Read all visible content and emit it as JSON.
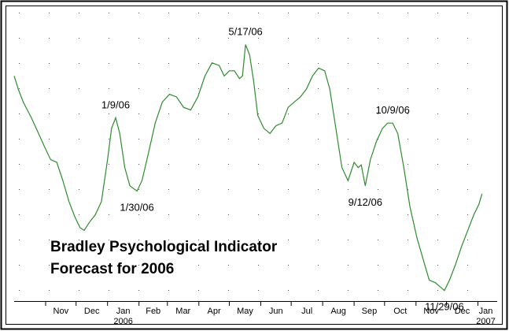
{
  "chart_data": {
    "type": "line",
    "title": "Bradley Psychological Indicator",
    "subtitle": "Forecast for 2006",
    "x_ticks": [
      {
        "label": "Nov",
        "sub": "",
        "date": "2005-11-01"
      },
      {
        "label": "Dec",
        "sub": "",
        "date": "2005-12-01"
      },
      {
        "label": "Jan",
        "sub": "2006",
        "date": "2006-01-01"
      },
      {
        "label": "Feb",
        "sub": "",
        "date": "2006-02-01"
      },
      {
        "label": "Mar",
        "sub": "",
        "date": "2006-03-01"
      },
      {
        "label": "Apr",
        "sub": "",
        "date": "2006-04-01"
      },
      {
        "label": "May",
        "sub": "",
        "date": "2006-05-01"
      },
      {
        "label": "Jun",
        "sub": "",
        "date": "2006-06-01"
      },
      {
        "label": "Jul",
        "sub": "",
        "date": "2006-07-01"
      },
      {
        "label": "Aug",
        "sub": "",
        "date": "2006-08-01"
      },
      {
        "label": "Sep",
        "sub": "",
        "date": "2006-09-01"
      },
      {
        "label": "Oct",
        "sub": "",
        "date": "2006-10-01"
      },
      {
        "label": "Nov",
        "sub": "",
        "date": "2006-11-01"
      },
      {
        "label": "Dec",
        "sub": "",
        "date": "2006-12-01"
      },
      {
        "label": "Jan",
        "sub": "2007",
        "date": "2007-01-01"
      }
    ],
    "xlim": [
      "2005-10-01",
      "2007-01-20"
    ],
    "ylim": [
      0,
      100
    ],
    "grid": "dotted",
    "line_color": "#2e8b2e",
    "series": [
      {
        "points": [
          [
            "2005-10-01",
            80
          ],
          [
            "2005-10-05",
            75
          ],
          [
            "2005-10-10",
            70
          ],
          [
            "2005-10-18",
            64
          ],
          [
            "2005-10-25",
            58
          ],
          [
            "2005-11-01",
            52
          ],
          [
            "2005-11-06",
            48
          ],
          [
            "2005-11-12",
            47
          ],
          [
            "2005-11-18",
            40
          ],
          [
            "2005-11-24",
            32
          ],
          [
            "2005-11-30",
            26
          ],
          [
            "2005-12-05",
            22
          ],
          [
            "2005-12-09",
            21
          ],
          [
            "2005-12-14",
            24
          ],
          [
            "2005-12-20",
            27
          ],
          [
            "2005-12-26",
            32
          ],
          [
            "2006-01-01",
            48
          ],
          [
            "2006-01-05",
            60
          ],
          [
            "2006-01-09",
            64
          ],
          [
            "2006-01-13",
            58
          ],
          [
            "2006-01-18",
            45
          ],
          [
            "2006-01-23",
            38
          ],
          [
            "2006-01-30",
            36
          ],
          [
            "2006-02-04",
            40
          ],
          [
            "2006-02-10",
            50
          ],
          [
            "2006-02-17",
            62
          ],
          [
            "2006-02-24",
            70
          ],
          [
            "2006-03-03",
            73
          ],
          [
            "2006-03-10",
            72
          ],
          [
            "2006-03-17",
            68
          ],
          [
            "2006-03-24",
            67
          ],
          [
            "2006-03-31",
            72
          ],
          [
            "2006-04-07",
            80
          ],
          [
            "2006-04-14",
            85
          ],
          [
            "2006-04-21",
            84
          ],
          [
            "2006-04-26",
            80
          ],
          [
            "2006-05-01",
            82
          ],
          [
            "2006-05-06",
            82
          ],
          [
            "2006-05-11",
            79
          ],
          [
            "2006-05-14",
            80
          ],
          [
            "2006-05-17",
            92
          ],
          [
            "2006-05-21",
            88
          ],
          [
            "2006-05-25",
            78
          ],
          [
            "2006-05-29",
            65
          ],
          [
            "2006-06-04",
            60
          ],
          [
            "2006-06-10",
            58
          ],
          [
            "2006-06-16",
            61
          ],
          [
            "2006-06-22",
            62
          ],
          [
            "2006-06-28",
            68
          ],
          [
            "2006-07-04",
            70
          ],
          [
            "2006-07-10",
            72
          ],
          [
            "2006-07-16",
            75
          ],
          [
            "2006-07-22",
            80
          ],
          [
            "2006-07-28",
            83
          ],
          [
            "2006-08-03",
            82
          ],
          [
            "2006-08-08",
            75
          ],
          [
            "2006-08-14",
            60
          ],
          [
            "2006-08-20",
            45
          ],
          [
            "2006-08-26",
            40
          ],
          [
            "2006-09-01",
            47
          ],
          [
            "2006-09-05",
            45
          ],
          [
            "2006-09-08",
            46
          ],
          [
            "2006-09-12",
            38
          ],
          [
            "2006-09-17",
            48
          ],
          [
            "2006-09-23",
            55
          ],
          [
            "2006-09-29",
            60
          ],
          [
            "2006-10-04",
            62
          ],
          [
            "2006-10-09",
            62
          ],
          [
            "2006-10-14",
            58
          ],
          [
            "2006-10-20",
            45
          ],
          [
            "2006-10-26",
            30
          ],
          [
            "2006-11-02",
            18
          ],
          [
            "2006-11-08",
            10
          ],
          [
            "2006-11-14",
            2
          ],
          [
            "2006-11-20",
            1
          ],
          [
            "2006-11-26",
            -1
          ],
          [
            "2006-11-29",
            -2
          ],
          [
            "2006-12-04",
            2
          ],
          [
            "2006-12-10",
            8
          ],
          [
            "2006-12-16",
            15
          ],
          [
            "2006-12-22",
            21
          ],
          [
            "2006-12-28",
            27
          ],
          [
            "2007-01-02",
            31
          ],
          [
            "2007-01-05",
            35
          ]
        ]
      }
    ],
    "annotations": [
      {
        "text": "1/9/06",
        "date": "2006-01-09",
        "position": "above"
      },
      {
        "text": "1/30/06",
        "date": "2006-01-30",
        "position": "below"
      },
      {
        "text": "5/17/06",
        "date": "2006-05-17",
        "position": "above"
      },
      {
        "text": "9/12/06",
        "date": "2006-09-12",
        "position": "below"
      },
      {
        "text": "10/9/06",
        "date": "2006-10-09",
        "position": "above"
      },
      {
        "text": "11/29/06",
        "date": "2006-11-29",
        "position": "below"
      }
    ]
  }
}
